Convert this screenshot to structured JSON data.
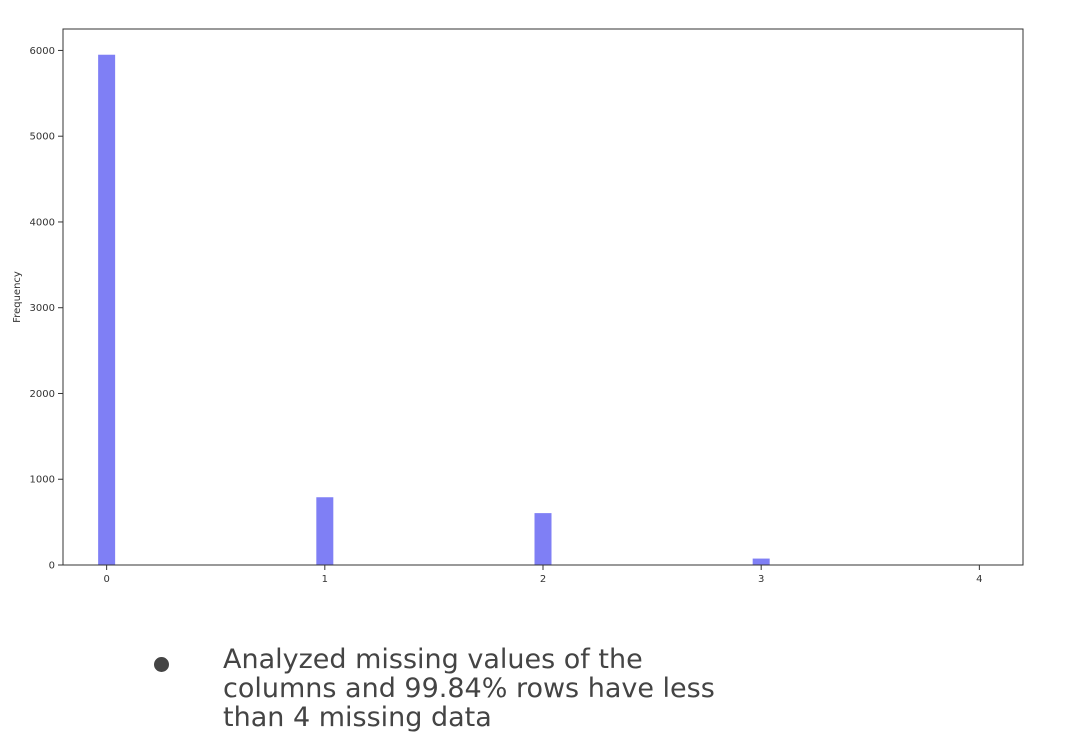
{
  "chart_data": {
    "type": "bar",
    "categories": [
      "0",
      "1",
      "2",
      "3",
      "4"
    ],
    "x": [
      0,
      1,
      2,
      3,
      4
    ],
    "values": [
      5950,
      790,
      605,
      75,
      0
    ],
    "title": "",
    "xlabel": "",
    "ylabel": "Frequency",
    "xlim": [
      -0.2,
      4.2
    ],
    "ylim": [
      0,
      6250
    ],
    "xticks": [
      "0",
      "1",
      "2",
      "3",
      "4"
    ],
    "yticks": [
      "0",
      "1000",
      "2000",
      "3000",
      "4000",
      "5000",
      "6000"
    ],
    "ytick_values": [
      0,
      1000,
      2000,
      3000,
      4000,
      5000,
      6000
    ],
    "bar_color": "#7f7ff5",
    "grid": false,
    "legend": "none"
  },
  "notes": {
    "bullet_text": "Analyzed missing values of the columns and 99.84% rows have less than 4 missing data"
  }
}
